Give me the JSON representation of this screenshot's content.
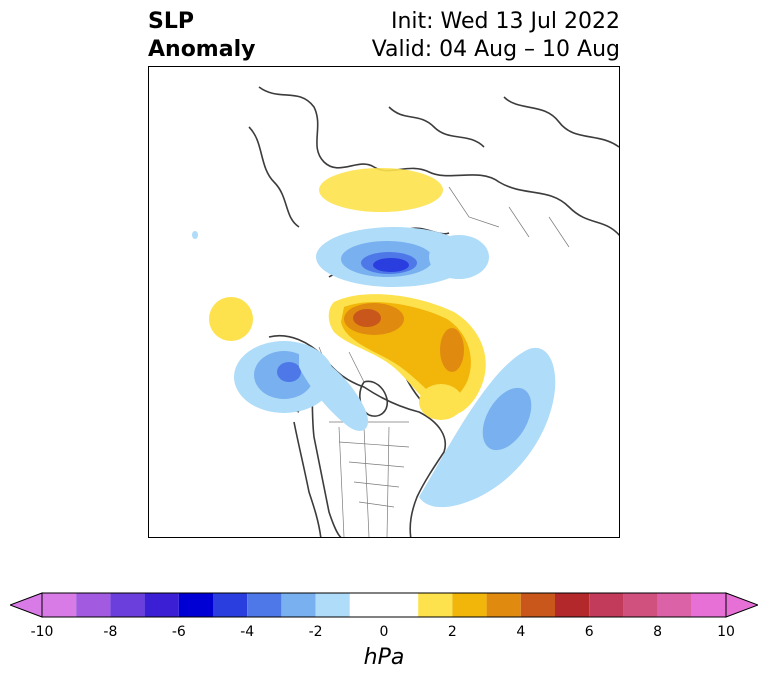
{
  "header": {
    "title_line1": "SLP",
    "title_line2": "Anomaly",
    "init_label": "Init: Wed 13 Jul 2022",
    "valid_label": "Valid: 04 Aug – 10 Aug"
  },
  "colorbar": {
    "units": "hPa",
    "tick_labels": [
      "-10",
      "-8",
      "-6",
      "-4",
      "-2",
      "0",
      "2",
      "4",
      "6",
      "8",
      "10"
    ],
    "bins": [
      {
        "from": -10,
        "to": -9,
        "color": "#d87be6"
      },
      {
        "from": -9,
        "to": -8,
        "color": "#a15ae0"
      },
      {
        "from": -8,
        "to": -7,
        "color": "#6b3fdb"
      },
      {
        "from": -7,
        "to": -6,
        "color": "#3a1fd5"
      },
      {
        "from": -6,
        "to": -5,
        "color": "#0000d4"
      },
      {
        "from": -5,
        "to": -4,
        "color": "#2a3ee0"
      },
      {
        "from": -4,
        "to": -3,
        "color": "#4e78e8"
      },
      {
        "from": -3,
        "to": -2,
        "color": "#78b0f0"
      },
      {
        "from": -2,
        "to": -1,
        "color": "#afdcf8"
      },
      {
        "from": -1,
        "to": 1,
        "color": "#ffffff"
      },
      {
        "from": 1,
        "to": 2,
        "color": "#fde24d"
      },
      {
        "from": 2,
        "to": 3,
        "color": "#f2b60a"
      },
      {
        "from": 3,
        "to": 4,
        "color": "#e08b10"
      },
      {
        "from": 4,
        "to": 5,
        "color": "#c9571c"
      },
      {
        "from": 5,
        "to": 6,
        "color": "#b3282a"
      },
      {
        "from": 6,
        "to": 7,
        "color": "#c23b5a"
      },
      {
        "from": 7,
        "to": 8,
        "color": "#d0507e"
      },
      {
        "from": 8,
        "to": 9,
        "color": "#dc62a8"
      },
      {
        "from": 9,
        "to": 10,
        "color": "#e670d6"
      }
    ],
    "extend": "both"
  }
}
